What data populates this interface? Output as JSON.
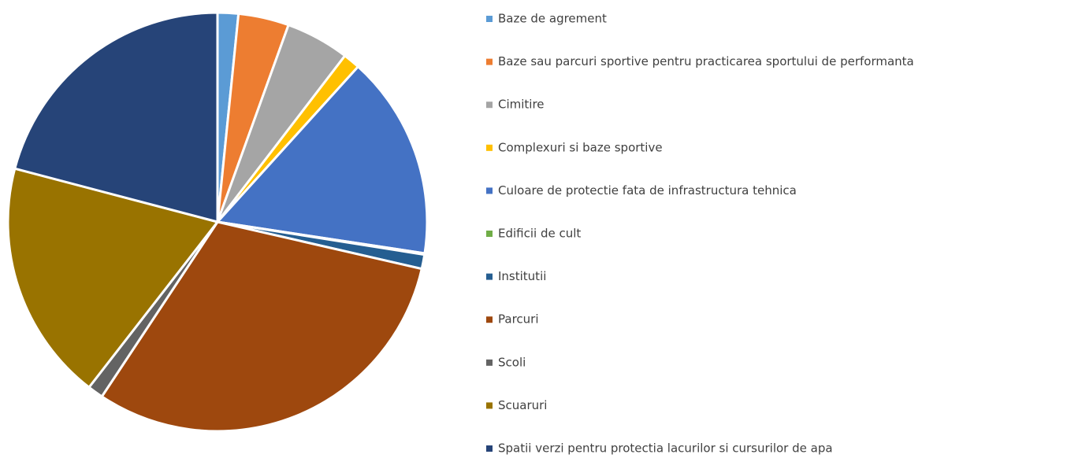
{
  "chart_data": {
    "type": "pie",
    "categories": [
      "Baze de agrement",
      "Baze sau parcuri sportive pentru practicarea sportului de performanta",
      "Cimitire",
      "Complexuri si baze sportive",
      "Culoare de protectie fata de infrastructura tehnica",
      "Edificii de cult",
      "Institutii",
      "Parcuri",
      "Scoli",
      "Scuaruri",
      "Spatii verzi pentru protectia lacurilor si cursurilor de apa"
    ],
    "values": [
      1.6,
      3.9,
      4.9,
      1.3,
      15.7,
      0.1,
      1.1,
      30.7,
      1.2,
      18.6,
      20.9
    ],
    "colors": [
      "#5b9bd5",
      "#ed7d31",
      "#a5a5a5",
      "#ffc000",
      "#4472c4",
      "#70ad47",
      "#255e91",
      "#9e480e",
      "#636363",
      "#997300",
      "#264478"
    ],
    "legend": "right"
  }
}
